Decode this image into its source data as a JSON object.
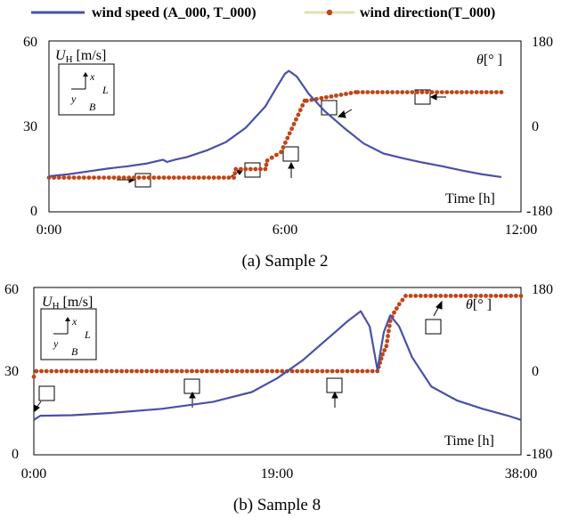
{
  "legend": {
    "speed_label": "wind speed (A_000, T_000)",
    "dir_label": "wind direction(T_000)"
  },
  "colors": {
    "speed": "#4a50a8",
    "direction": "#c0441a",
    "direction_line": "#e6dcb4"
  },
  "panels": [
    {
      "caption": "(a) Sample 2",
      "ylabel_left_sym": "U",
      "ylabel_left_sub": "H",
      "ylabel_left_unit": " [m/s]",
      "ylabel_right_sym": "θ",
      "ylabel_right_unit": "[° ]",
      "xlabel": "Time [h]",
      "yticks_left": [
        "0",
        "30",
        "60"
      ],
      "yticks_right": [
        "-180",
        "0",
        "180"
      ],
      "xticks": [
        "0:00",
        "6:00",
        "12:00"
      ],
      "axes_icon": {
        "x": "x",
        "y": "y",
        "L": "L",
        "B": "B"
      }
    },
    {
      "caption": "(b) Sample 8",
      "ylabel_left_sym": "U",
      "ylabel_left_sub": "H",
      "ylabel_left_unit": " [m/s]",
      "ylabel_right_sym": "θ",
      "ylabel_right_unit": "[° ]",
      "xlabel": "Time [h]",
      "yticks_left": [
        "0",
        "30",
        "60"
      ],
      "yticks_right": [
        "-180",
        "0",
        "180"
      ],
      "xticks": [
        "0:00",
        "19:00",
        "38:00"
      ],
      "axes_icon": {
        "x": "x",
        "y": "y",
        "L": "L",
        "B": "B"
      }
    }
  ],
  "chart_data": [
    {
      "type": "line",
      "title": "(a) Sample 2",
      "xlabel": "Time [h]",
      "xlim": [
        0,
        12
      ],
      "ylim_left": [
        0,
        60
      ],
      "ylim_right": [
        -180,
        180
      ],
      "series": [
        {
          "name": "wind speed (A_000, T_000)",
          "axis": "left",
          "x": [
            0,
            0.5,
            1,
            1.5,
            2,
            2.5,
            2.9,
            3.0,
            3.2,
            3.5,
            4,
            4.5,
            5,
            5.5,
            5.8,
            6.0,
            6.1,
            6.3,
            6.6,
            7,
            7.5,
            8,
            8.5,
            9,
            9.5,
            10,
            10.5,
            11,
            11.5
          ],
          "values": [
            12.5,
            13.2,
            14.2,
            15.2,
            16.0,
            17.0,
            18.3,
            17.5,
            18.3,
            19.2,
            21.5,
            24.5,
            29.5,
            37.0,
            44.0,
            48.5,
            49.5,
            47.5,
            41.5,
            35.5,
            29.5,
            24.0,
            20.5,
            18.8,
            17.3,
            16.0,
            14.5,
            13.2,
            12.2
          ]
        },
        {
          "name": "wind direction(T_000)",
          "axis": "right",
          "x": [
            0,
            4.7,
            4.75,
            5.5,
            5.55,
            5.9,
            6.5,
            6.55,
            7.8,
            7.85,
            11.5
          ],
          "values": [
            -108,
            -108,
            -90,
            -90,
            -72,
            -54,
            54,
            54,
            72,
            72,
            72
          ]
        }
      ]
    },
    {
      "type": "line",
      "title": "(b) Sample 8",
      "xlabel": "Time [h]",
      "xlim": [
        0,
        38
      ],
      "ylim_left": [
        0,
        60
      ],
      "ylim_right": [
        -180,
        180
      ],
      "series": [
        {
          "name": "wind speed (A_000, T_000)",
          "axis": "left",
          "x": [
            0,
            0.5,
            3,
            6,
            10,
            14,
            17,
            19,
            21,
            23,
            24.5,
            25.5,
            26.2,
            26.8,
            27.3,
            27.8,
            28.5,
            29.5,
            31,
            33,
            35,
            37,
            38
          ],
          "values": [
            12.5,
            14.0,
            14.2,
            15.0,
            16.5,
            19.0,
            22.5,
            27.5,
            34.0,
            42.0,
            48.0,
            51.5,
            46.0,
            30.5,
            44.0,
            50.0,
            46.0,
            35.0,
            24.5,
            19.5,
            16.5,
            14.0,
            12.5
          ]
        },
        {
          "name": "wind direction(T_000)",
          "axis": "right",
          "x": [
            0,
            0.2,
            26.8,
            27.0,
            27.2,
            27.5,
            27.8,
            28.1,
            28.5,
            29.0,
            38
          ],
          "values": [
            -12,
            0,
            0,
            18,
            36,
            54,
            108,
            126,
            144,
            162,
            162
          ]
        }
      ]
    }
  ]
}
